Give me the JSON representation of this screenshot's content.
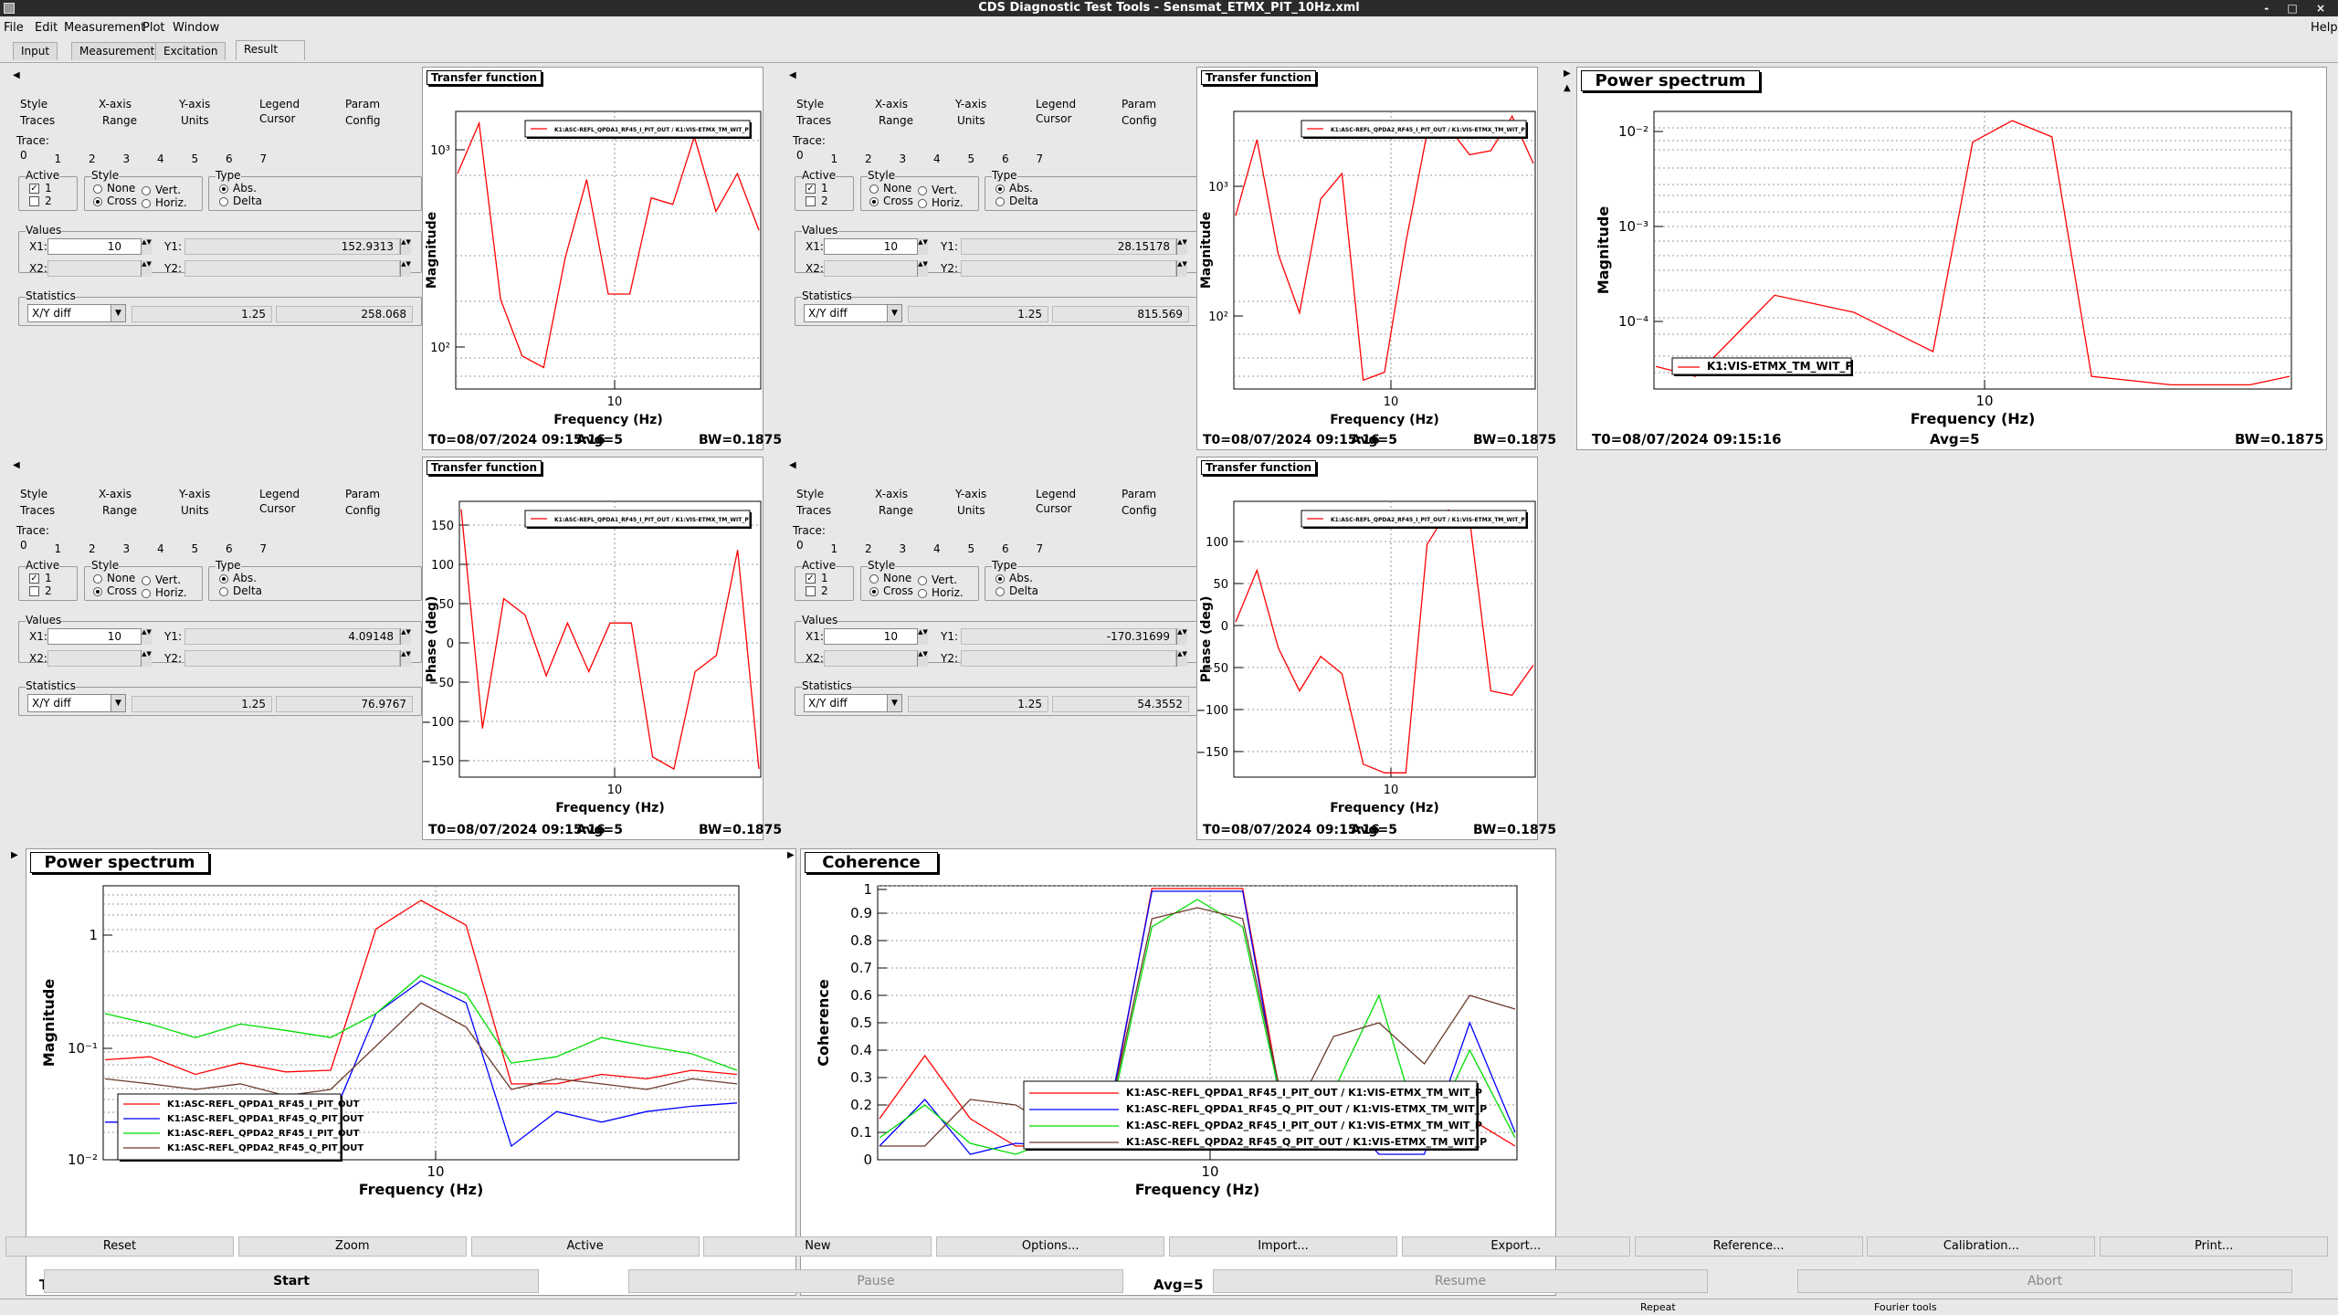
{
  "window": {
    "title": "CDS Diagnostic Test Tools - Sensmat_ETMX_PIT_10Hz.xml",
    "controls": "- □ ×"
  },
  "menu": [
    "File",
    "Edit",
    "Measurement",
    "Plot",
    "Window"
  ],
  "help_menu": "Help",
  "main_tabs": [
    "Input",
    "Measurement",
    "Excitation",
    "Result"
  ],
  "option_panel": {
    "row1_tabs": [
      "Style",
      "X-axis",
      "Y-axis",
      "Legend",
      "Param"
    ],
    "row2_tabs": [
      "Traces",
      "Range",
      "Units",
      "Cursor",
      "Config"
    ],
    "trace_label": "Trace:",
    "trace_numbers": [
      "0",
      "1",
      "2",
      "3",
      "4",
      "5",
      "6",
      "7"
    ],
    "active_label": "Active",
    "active_items": [
      "1",
      "2"
    ],
    "style_label": "Style",
    "style_items": [
      "None",
      "Vert.",
      "Cross",
      "Horiz."
    ],
    "type_label": "Type",
    "type_items": [
      "Abs.",
      "Delta"
    ],
    "values_label": "Values",
    "x1_label": "X1:",
    "x2_label": "X2:",
    "y1_label": "Y1:",
    "y2_label": "Y2:",
    "statistics_label": "Statistics",
    "stat_mode": "X/Y diff"
  },
  "cursor_panels": [
    {
      "x1": "10",
      "y1": "152.9313",
      "stat1": "1.25",
      "stat2": "258.068"
    },
    {
      "x1": "10",
      "y1": "28.15178",
      "stat1": "1.25",
      "stat2": "815.569"
    },
    {
      "x1": "10",
      "y1": "4.09148",
      "stat1": "1.25",
      "stat2": "76.9767"
    },
    {
      "x1": "10",
      "y1": "-170.31699",
      "stat1": "1.25",
      "stat2": "54.3552"
    }
  ],
  "footer": {
    "t0": "T0=08/07/2024 09:15:16",
    "avg": "Avg=5",
    "bw": "BW=0.1875"
  },
  "plots": {
    "tf1_mag": {
      "title": "Transfer function",
      "xlabel": "Frequency (Hz)",
      "ylabel": "Magnitude",
      "legend": [
        "K1:ASC-REFL_QPDA1_RF45_I_PIT_OUT / K1:VIS-ETMX_TM_WIT_P"
      ],
      "y_ticks": [
        "10³",
        "10²"
      ],
      "x_ticks": [
        "10"
      ]
    },
    "tf2_mag": {
      "title": "Transfer function",
      "xlabel": "Frequency (Hz)",
      "ylabel": "Magnitude",
      "legend": [
        "K1:ASC-REFL_QPDA2_RF45_I_PIT_OUT / K1:VIS-ETMX_TM_WIT_P"
      ],
      "y_ticks": [
        "10³",
        "10²"
      ],
      "x_ticks": [
        "10"
      ]
    },
    "psd_top": {
      "title": "Power spectrum",
      "xlabel": "Frequency (Hz)",
      "ylabel": "Magnitude",
      "legend": [
        "K1:VIS-ETMX_TM_WIT_P"
      ],
      "y_ticks": [
        "10⁻²",
        "10⁻³",
        "10⁻⁴"
      ],
      "x_ticks": [
        "10"
      ]
    },
    "tf1_phase": {
      "title": "Transfer function",
      "xlabel": "Frequency (Hz)",
      "ylabel": "Phase (deg)",
      "legend": [
        "K1:ASC-REFL_QPDA1_RF45_I_PIT_OUT / K1:VIS-ETMX_TM_WIT_P"
      ],
      "y_ticks": [
        "150",
        "100",
        "50",
        "0",
        "−50",
        "−100",
        "−150"
      ],
      "x_ticks": [
        "10"
      ]
    },
    "tf2_phase": {
      "title": "Transfer function",
      "xlabel": "Frequency (Hz)",
      "ylabel": "Phase (deg)",
      "legend": [
        "K1:ASC-REFL_QPDA2_RF45_I_PIT_OUT / K1:VIS-ETMX_TM_WIT_P"
      ],
      "y_ticks": [
        "100",
        "50",
        "0",
        "−50",
        "−100",
        "−150"
      ],
      "x_ticks": [
        "10"
      ]
    },
    "psd_bottom": {
      "title": "Power spectrum",
      "xlabel": "Frequency (Hz)",
      "ylabel": "Magnitude",
      "legend": [
        "K1:ASC-REFL_QPDA1_RF45_I_PIT_OUT",
        "K1:ASC-REFL_QPDA1_RF45_Q_PIT_OUT",
        "K1:ASC-REFL_QPDA2_RF45_I_PIT_OUT",
        "K1:ASC-REFL_QPDA2_RF45_Q_PIT_OUT"
      ],
      "y_ticks": [
        "1",
        "10⁻¹",
        "10⁻²"
      ],
      "x_ticks": [
        "10"
      ]
    },
    "coherence": {
      "title": "Coherence",
      "xlabel": "Frequency (Hz)",
      "ylabel": "Coherence",
      "legend": [
        "K1:ASC-REFL_QPDA1_RF45_I_PIT_OUT / K1:VIS-ETMX_TM_WIT_P",
        "K1:ASC-REFL_QPDA1_RF45_Q_PIT_OUT / K1:VIS-ETMX_TM_WIT_P",
        "K1:ASC-REFL_QPDA2_RF45_I_PIT_OUT / K1:VIS-ETMX_TM_WIT_P",
        "K1:ASC-REFL_QPDA2_RF45_Q_PIT_OUT / K1:VIS-ETMX_TM_WIT_P"
      ],
      "y_ticks": [
        "1",
        "0.9",
        "0.8",
        "0.7",
        "0.6",
        "0.5",
        "0.4",
        "0.3",
        "0.2",
        "0.1",
        "0"
      ],
      "x_ticks": [
        "10"
      ]
    }
  },
  "chart_data": [
    {
      "type": "line",
      "title": "Transfer function",
      "xlabel": "Frequency (Hz)",
      "ylabel": "Magnitude",
      "y_scale": "log",
      "x": [
        8.25,
        8.5,
        8.75,
        9,
        9.25,
        9.5,
        9.75,
        10,
        10.25,
        10.5,
        10.75,
        11,
        11.25,
        11.5,
        11.75
      ],
      "series": [
        {
          "values": [
            700,
            1300,
            150,
            75,
            65,
            250,
            650,
            160,
            160,
            520,
            480,
            1100,
            440,
            700,
            350
          ]
        }
      ]
    },
    {
      "type": "line",
      "title": "Transfer function",
      "xlabel": "Frequency (Hz)",
      "ylabel": "Magnitude",
      "y_scale": "log",
      "x": [
        8.25,
        8.5,
        8.75,
        9,
        9.25,
        9.5,
        9.75,
        10,
        10.25,
        10.5,
        10.75,
        11,
        11.25,
        11.5,
        11.75
      ],
      "series": [
        {
          "values": [
            400,
            1100,
            240,
            110,
            500,
            700,
            45,
            50,
            280,
            1200,
            1300,
            900,
            950,
            1500,
            800
          ]
        }
      ]
    },
    {
      "type": "line",
      "title": "Power spectrum",
      "xlabel": "Frequency (Hz)",
      "ylabel": "Magnitude",
      "y_scale": "log",
      "x": [
        7.75,
        8,
        8.5,
        9,
        9.5,
        9.75,
        10,
        10.25,
        10.5,
        11,
        11.5,
        11.75
      ],
      "series": [
        {
          "name": "K1:VIS-ETMX_TM_WIT_P",
          "values": [
            5e-05,
            4e-05,
            0.00025,
            0.00017,
            7e-05,
            0.008,
            0.013,
            0.009,
            4e-05,
            3.3e-05,
            3.3e-05,
            4e-05
          ]
        }
      ]
    },
    {
      "type": "line",
      "title": "Transfer function",
      "xlabel": "Frequency (Hz)",
      "ylabel": "Phase (deg)",
      "x": [
        8.25,
        8.5,
        8.75,
        9,
        9.25,
        9.5,
        9.75,
        10,
        10.25,
        10.5,
        10.75,
        11,
        11.25,
        11.5,
        11.75
      ],
      "series": [
        {
          "values": [
            150,
            -120,
            40,
            20,
            -55,
            10,
            -50,
            10,
            10,
            -155,
            -170,
            -50,
            -30,
            100,
            -170
          ]
        }
      ]
    },
    {
      "type": "line",
      "title": "Transfer function",
      "xlabel": "Frequency (Hz)",
      "ylabel": "Phase (deg)",
      "x": [
        8.25,
        8.5,
        8.75,
        9,
        9.25,
        9.5,
        9.75,
        10,
        10.25,
        10.5,
        10.75,
        11,
        11.25,
        11.5,
        11.75
      ],
      "series": [
        {
          "values": [
            10,
            70,
            -20,
            -70,
            -30,
            -50,
            -155,
            -165,
            -165,
            100,
            140,
            130,
            -70,
            -75,
            -40
          ]
        }
      ]
    },
    {
      "type": "line",
      "title": "Power spectrum",
      "xlabel": "Frequency (Hz)",
      "ylabel": "Magnitude",
      "y_scale": "log",
      "x": [
        8.25,
        8.5,
        8.75,
        9,
        9.25,
        9.5,
        9.75,
        10,
        10.25,
        10.5,
        10.75,
        11,
        11.25,
        11.5,
        11.75
      ],
      "series": [
        {
          "name": "K1:ASC-REFL_QPDA1_RF45_I_PIT_OUT",
          "values": [
            0.075,
            0.08,
            0.055,
            0.07,
            0.058,
            0.06,
            1.2,
            2.2,
            1.3,
            0.045,
            0.045,
            0.055,
            0.05,
            0.06,
            0.055
          ]
        },
        {
          "name": "K1:ASC-REFL_QPDA1_RF45_Q_PIT_OUT",
          "values": [
            0.02,
            0.02,
            0.018,
            0.02,
            0.017,
            0.02,
            0.2,
            0.4,
            0.25,
            0.012,
            0.025,
            0.02,
            0.025,
            0.028,
            0.03
          ]
        },
        {
          "name": "K1:ASC-REFL_QPDA2_RF45_I_PIT_OUT",
          "values": [
            0.2,
            0.16,
            0.12,
            0.16,
            0.14,
            0.12,
            0.2,
            0.45,
            0.3,
            0.07,
            0.08,
            0.12,
            0.1,
            0.085,
            0.06
          ]
        },
        {
          "name": "K1:ASC-REFL_QPDA2_RF45_Q_PIT_OUT",
          "values": [
            0.05,
            0.045,
            0.04,
            0.045,
            0.035,
            0.04,
            0.1,
            0.25,
            0.15,
            0.04,
            0.05,
            0.045,
            0.04,
            0.05,
            0.045
          ]
        }
      ]
    },
    {
      "type": "line",
      "title": "Coherence",
      "xlabel": "Frequency (Hz)",
      "ylabel": "Coherence",
      "ylim": [
        0,
        1
      ],
      "x": [
        8.25,
        8.5,
        8.75,
        9,
        9.25,
        9.5,
        9.75,
        10,
        10.25,
        10.5,
        10.75,
        11,
        11.25,
        11.5,
        11.75
      ],
      "series": [
        {
          "name": "K1:ASC-REFL_QPDA1_RF45_I_PIT_OUT / K1:VIS-ETMX_TM_WIT_P",
          "values": [
            0.15,
            0.38,
            0.15,
            0.05,
            0.05,
            0.1,
            0.99,
            0.99,
            0.99,
            0.08,
            0.08,
            0.12,
            0.1,
            0.15,
            0.05
          ]
        },
        {
          "name": "K1:ASC-REFL_QPDA1_RF45_Q_PIT_OUT / K1:VIS-ETMX_TM_WIT_P",
          "values": [
            0.05,
            0.22,
            0.02,
            0.06,
            0.05,
            0.12,
            0.98,
            0.98,
            0.98,
            0.05,
            0.2,
            0.02,
            0.02,
            0.5,
            0.1
          ]
        },
        {
          "name": "K1:ASC-REFL_QPDA2_RF45_I_PIT_OUT / K1:VIS-ETMX_TM_WIT_P",
          "values": [
            0.08,
            0.2,
            0.06,
            0.02,
            0.08,
            0.1,
            0.85,
            0.95,
            0.85,
            0.1,
            0.25,
            0.6,
            0.05,
            0.4,
            0.08
          ]
        },
        {
          "name": "K1:ASC-REFL_QPDA2_RF45_Q_PIT_OUT / K1:VIS-ETMX_TM_WIT_P",
          "values": [
            0.05,
            0.05,
            0.22,
            0.2,
            0.1,
            0.12,
            0.88,
            0.92,
            0.88,
            0.12,
            0.45,
            0.5,
            0.35,
            0.6,
            0.55
          ]
        }
      ]
    }
  ],
  "bottom_buttons": [
    "Reset",
    "Zoom",
    "Active",
    "New",
    "Options...",
    "Import...",
    "Export...",
    "Reference...",
    "Calibration...",
    "Print..."
  ],
  "action_buttons": [
    "Start",
    "Pause",
    "Resume",
    "Abort"
  ],
  "status": [
    "Repeat",
    "Fourier tools"
  ],
  "colors": {
    "red": "#ff0000",
    "blue": "#0000ff",
    "green": "#00dd00",
    "brown": "#6b3b2b",
    "grid": "#666666"
  }
}
